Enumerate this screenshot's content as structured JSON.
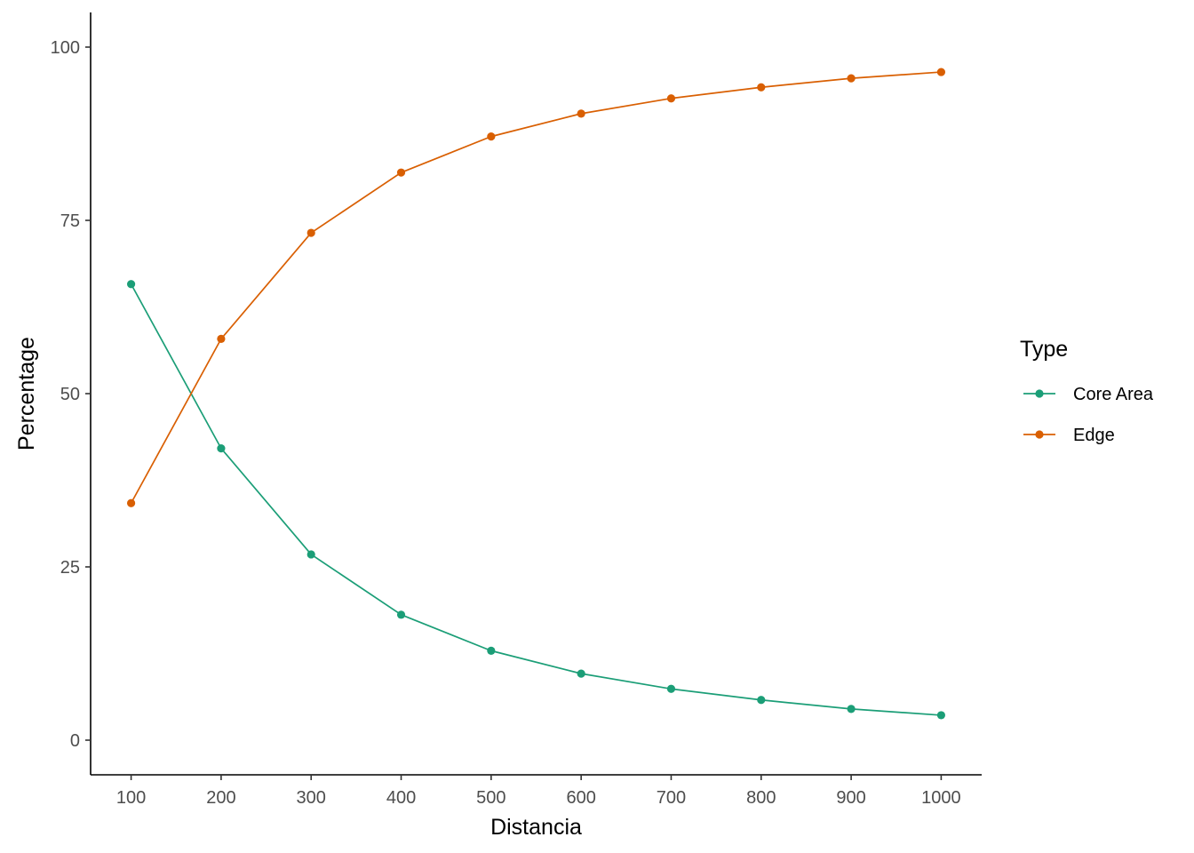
{
  "chart_data": {
    "type": "line",
    "title": "",
    "xlabel": "Distancia",
    "ylabel": "Percentage",
    "x": [
      100,
      200,
      300,
      400,
      500,
      600,
      700,
      800,
      900,
      1000
    ],
    "x_ticks": [
      100,
      200,
      300,
      400,
      500,
      600,
      700,
      800,
      900,
      1000
    ],
    "xlim": [
      55,
      1045
    ],
    "y_ticks": [
      0,
      25,
      50,
      75,
      100
    ],
    "ylim": [
      -5,
      105
    ],
    "grid": false,
    "legend": {
      "title": "Type",
      "placement": "right"
    },
    "series": [
      {
        "name": "Core Area",
        "color": "#1b9e77",
        "values": [
          65.8,
          42.1,
          26.8,
          18.1,
          12.9,
          9.6,
          7.4,
          5.8,
          4.5,
          3.6
        ]
      },
      {
        "name": "Edge",
        "color": "#d95f02",
        "values": [
          34.2,
          57.9,
          73.2,
          81.9,
          87.1,
          90.4,
          92.6,
          94.2,
          95.5,
          96.4
        ]
      }
    ]
  }
}
